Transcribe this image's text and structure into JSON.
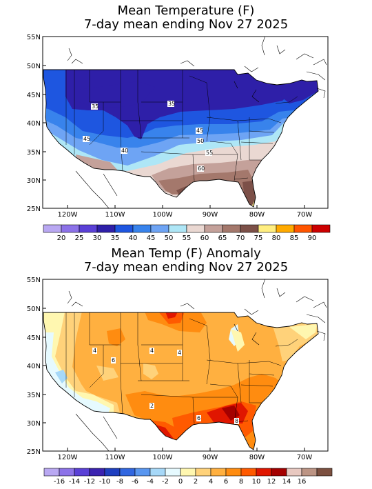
{
  "top_map": {
    "title_line1": "Mean Temperature (F)",
    "title_line2": "7-day mean ending Nov 27 2025",
    "lat_labels": [
      "55N",
      "50N",
      "45N",
      "40N",
      "35N",
      "30N",
      "25N"
    ],
    "lon_labels": [
      "120W",
      "110W",
      "100W",
      "90W",
      "80W",
      "70W"
    ],
    "legend_colors": [
      "#b9a8f2",
      "#8c72e8",
      "#5a40d6",
      "#2e1fa8",
      "#1e56e0",
      "#3883ec",
      "#6ea4f4",
      "#aee6f6",
      "#ead8d2",
      "#c4a19a",
      "#a4786c",
      "#7c5048",
      "#ffee80",
      "#ffaa00",
      "#ff5500",
      "#cc0000"
    ],
    "legend_labels": [
      "20",
      "25",
      "30",
      "35",
      "40",
      "45",
      "50",
      "55",
      "60",
      "65",
      "70",
      "75",
      "80",
      "85",
      "90"
    ],
    "contour_labels": [
      "35",
      "35",
      "45",
      "45",
      "50",
      "40",
      "55",
      "60"
    ]
  },
  "bottom_map": {
    "title_line1": "Mean Temp (F) Anomaly",
    "title_line2": "7-day mean ending Nov 27 2025",
    "lat_labels": [
      "55N",
      "50N",
      "45N",
      "40N",
      "35N",
      "30N",
      "25N"
    ],
    "lon_labels": [
      "120W",
      "110W",
      "100W",
      "90W",
      "80W",
      "70W"
    ],
    "legend_colors": [
      "#b9a8f2",
      "#8c72e8",
      "#5a40d6",
      "#3a22b0",
      "#1e3fc0",
      "#3066e0",
      "#5896f0",
      "#a6d8f8",
      "#e6faff",
      "#fff7b0",
      "#ffd27a",
      "#ffb040",
      "#ff8c10",
      "#ff5a00",
      "#e01600",
      "#a40000",
      "#e8c8c0",
      "#bc9484",
      "#7c5040"
    ],
    "legend_labels": [
      "-16",
      "-14",
      "-12",
      "-10",
      "-8",
      "-6",
      "-4",
      "-2",
      "0",
      "2",
      "4",
      "6",
      "8",
      "10",
      "12",
      "14",
      "16"
    ],
    "contour_labels": [
      "4",
      "6",
      "4",
      "4",
      "2",
      "6",
      "8"
    ]
  }
}
